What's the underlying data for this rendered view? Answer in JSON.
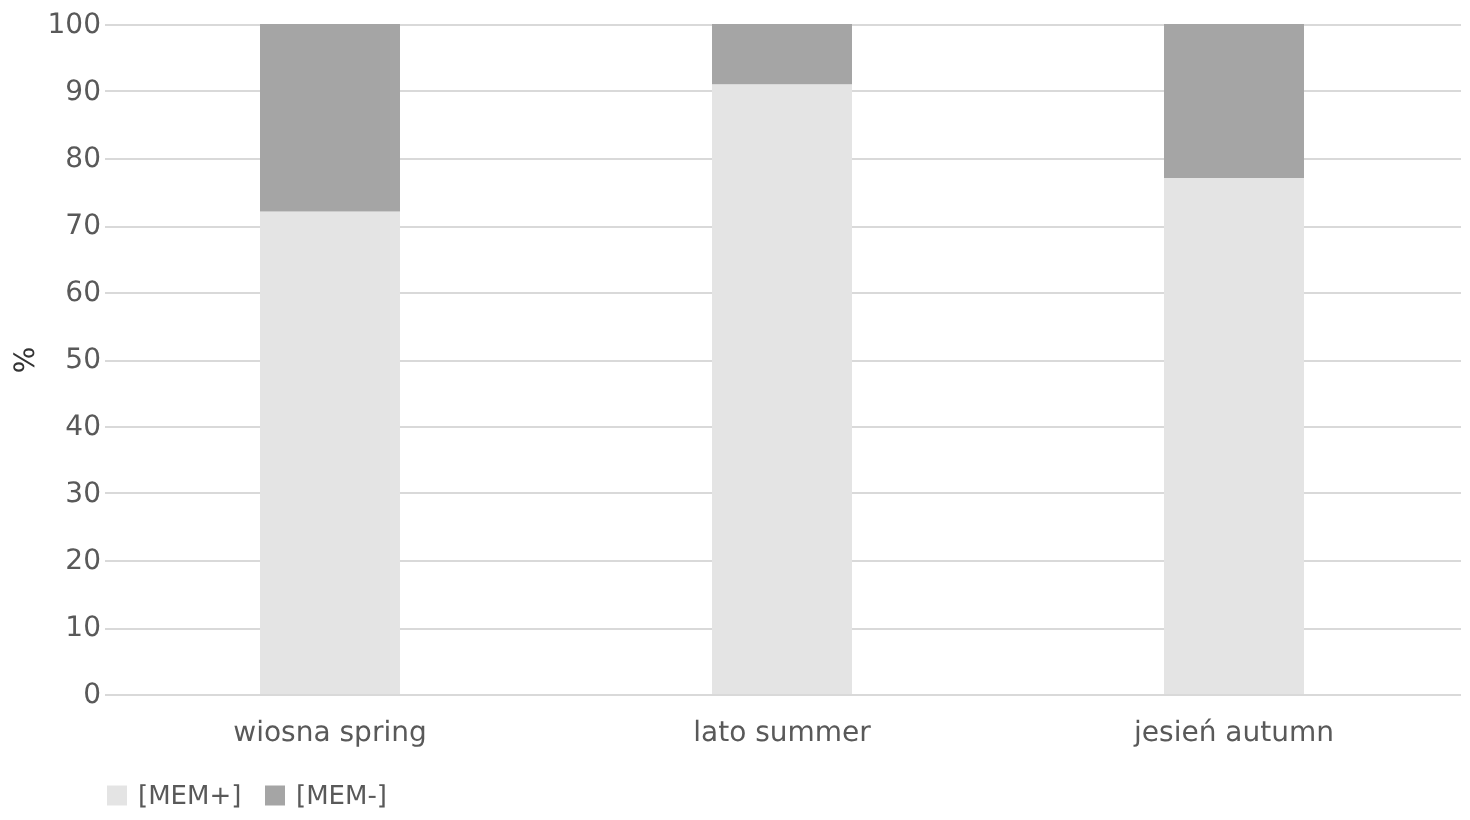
{
  "chart_data": {
    "type": "bar",
    "stacked": true,
    "ylabel": "%",
    "categories": [
      "wiosna  spring",
      "lato  summer",
      "jesień  autumn"
    ],
    "series": [
      {
        "name": "[MEM+]",
        "color": "#e4e4e4",
        "values": [
          72,
          91,
          77
        ]
      },
      {
        "name": "[MEM-]",
        "color": "#a5a5a5",
        "values": [
          28,
          9,
          23
        ]
      }
    ],
    "ylim": [
      0,
      100
    ],
    "yticks": [
      0,
      10,
      20,
      30,
      40,
      50,
      60,
      70,
      80,
      90,
      100
    ],
    "grid": "y",
    "legend": "bottom"
  }
}
